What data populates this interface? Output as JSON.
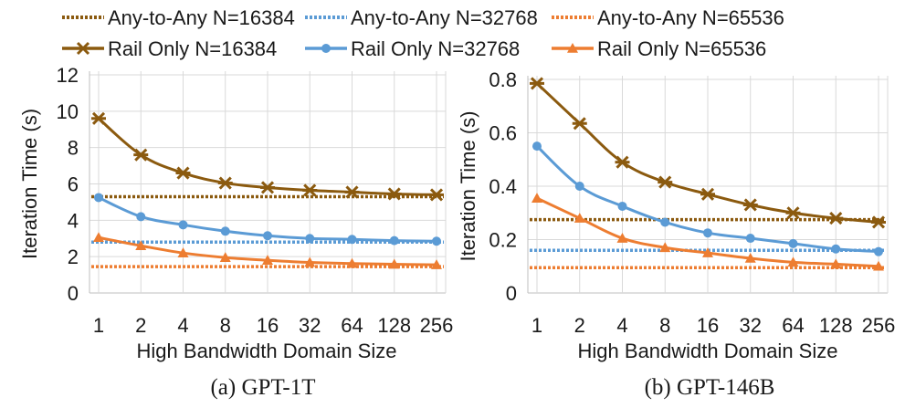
{
  "legend": {
    "entries": [
      {
        "label": "Any-to-Any N=16384",
        "series": "ata-16384"
      },
      {
        "label": "Any-to-Any N=32768",
        "series": "ata-32768"
      },
      {
        "label": "Any-to-Any N=65536",
        "series": "ata-65536"
      },
      {
        "label": "Rail Only N=16384",
        "series": "rail-16384"
      },
      {
        "label": "Rail Only N=32768",
        "series": "rail-32768"
      },
      {
        "label": "Rail Only N=65536",
        "series": "rail-65536"
      }
    ]
  },
  "colors": {
    "n16384": "#8b5a0f",
    "n32768": "#5b9bd5",
    "n65536": "#ed7d31",
    "grid": "#d9d9d9",
    "axis": "#bfbfbf"
  },
  "chart_data": [
    {
      "type": "line",
      "caption": "(a) GPT-1T",
      "xlabel": "High Bandwidth Domain Size",
      "ylabel": "Iteration Time (s)",
      "categories": [
        "1",
        "2",
        "4",
        "8",
        "16",
        "32",
        "64",
        "128",
        "256"
      ],
      "ylim": [
        0,
        12
      ],
      "yticks": [
        0,
        2,
        4,
        6,
        8,
        10,
        12
      ],
      "ytick_labels": [
        "0",
        "2",
        "4",
        "6",
        "8",
        "10",
        "12"
      ],
      "grid": true,
      "series": [
        {
          "name": "Any-to-Any N=16384",
          "key": "ata-16384",
          "style": "dotted",
          "color": "#8b5a0f",
          "values": [
            5.3,
            5.3,
            5.3,
            5.3,
            5.3,
            5.3,
            5.3,
            5.3,
            5.3
          ]
        },
        {
          "name": "Any-to-Any N=32768",
          "key": "ata-32768",
          "style": "dotted",
          "color": "#5b9bd5",
          "values": [
            2.8,
            2.8,
            2.8,
            2.8,
            2.8,
            2.8,
            2.8,
            2.8,
            2.8
          ]
        },
        {
          "name": "Any-to-Any N=65536",
          "key": "ata-65536",
          "style": "dotted",
          "color": "#ed7d31",
          "values": [
            1.45,
            1.45,
            1.45,
            1.45,
            1.45,
            1.45,
            1.45,
            1.45,
            1.45
          ]
        },
        {
          "name": "Rail Only N=16384",
          "key": "rail-16384",
          "style": "solid",
          "marker": "star",
          "color": "#8b5a0f",
          "values": [
            9.6,
            7.6,
            6.6,
            6.05,
            5.8,
            5.65,
            5.55,
            5.45,
            5.4
          ]
        },
        {
          "name": "Rail Only N=32768",
          "key": "rail-32768",
          "style": "solid",
          "marker": "circle",
          "color": "#5b9bd5",
          "values": [
            5.25,
            4.2,
            3.75,
            3.4,
            3.15,
            3.0,
            2.95,
            2.88,
            2.85
          ]
        },
        {
          "name": "Rail Only N=65536",
          "key": "rail-65536",
          "style": "solid",
          "marker": "triangle",
          "color": "#ed7d31",
          "values": [
            3.05,
            2.6,
            2.2,
            1.95,
            1.8,
            1.68,
            1.62,
            1.58,
            1.55
          ]
        }
      ]
    },
    {
      "type": "line",
      "caption": "(b) GPT-146B",
      "xlabel": "High Bandwidth Domain Size",
      "ylabel": "Iteration Time (s)",
      "categories": [
        "1",
        "2",
        "4",
        "8",
        "16",
        "32",
        "64",
        "128",
        "256"
      ],
      "ylim": [
        0,
        0.8
      ],
      "yticks": [
        0,
        0.2,
        0.4,
        0.6,
        0.8
      ],
      "ytick_labels": [
        "0",
        "0.2",
        "0.4",
        "0.6",
        "0.8"
      ],
      "grid": true,
      "series": [
        {
          "name": "Any-to-Any N=16384",
          "key": "ata-16384",
          "style": "dotted",
          "color": "#8b5a0f",
          "values": [
            0.275,
            0.275,
            0.275,
            0.275,
            0.275,
            0.275,
            0.275,
            0.275,
            0.275
          ]
        },
        {
          "name": "Any-to-Any N=32768",
          "key": "ata-32768",
          "style": "dotted",
          "color": "#5b9bd5",
          "values": [
            0.16,
            0.16,
            0.16,
            0.16,
            0.16,
            0.16,
            0.16,
            0.16,
            0.16
          ]
        },
        {
          "name": "Any-to-Any N=65536",
          "key": "ata-65536",
          "style": "dotted",
          "color": "#ed7d31",
          "values": [
            0.095,
            0.095,
            0.095,
            0.095,
            0.095,
            0.095,
            0.095,
            0.095,
            0.095
          ]
        },
        {
          "name": "Rail Only N=16384",
          "key": "rail-16384",
          "style": "solid",
          "marker": "star",
          "color": "#8b5a0f",
          "values": [
            0.785,
            0.635,
            0.49,
            0.415,
            0.37,
            0.33,
            0.3,
            0.28,
            0.265
          ]
        },
        {
          "name": "Rail Only N=32768",
          "key": "rail-32768",
          "style": "solid",
          "marker": "circle",
          "color": "#5b9bd5",
          "values": [
            0.55,
            0.4,
            0.325,
            0.265,
            0.225,
            0.205,
            0.185,
            0.165,
            0.155
          ]
        },
        {
          "name": "Rail Only N=65536",
          "key": "rail-65536",
          "style": "solid",
          "marker": "triangle",
          "color": "#ed7d31",
          "values": [
            0.355,
            0.28,
            0.205,
            0.17,
            0.15,
            0.13,
            0.115,
            0.108,
            0.1
          ]
        }
      ]
    }
  ]
}
